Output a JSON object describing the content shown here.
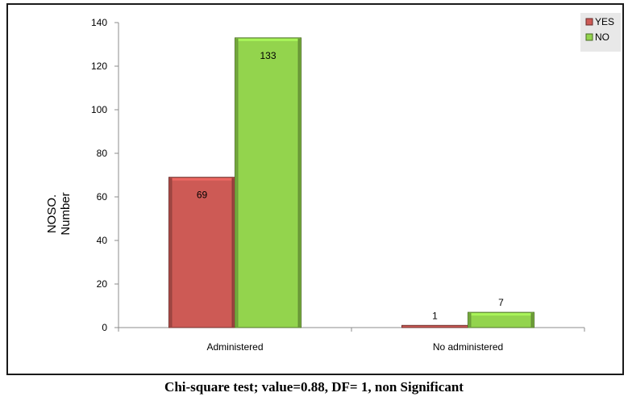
{
  "chart_data": {
    "type": "bar",
    "categories": [
      "Administered",
      "No administered"
    ],
    "series": [
      {
        "name": "YES",
        "values": [
          69,
          1
        ],
        "color": "#cd5a55"
      },
      {
        "name": "NO",
        "values": [
          133,
          7
        ],
        "color": "#93d44d"
      }
    ],
    "ylabel_line1": "NOSO.",
    "ylabel_line2": "Number",
    "ylim": [
      0,
      140
    ],
    "yticks": [
      0,
      20,
      40,
      60,
      80,
      100,
      120,
      140
    ],
    "grid": false,
    "legend_position": "top-right"
  },
  "footnote": "Chi-square test; value=0.88, DF= 1, non Significant"
}
